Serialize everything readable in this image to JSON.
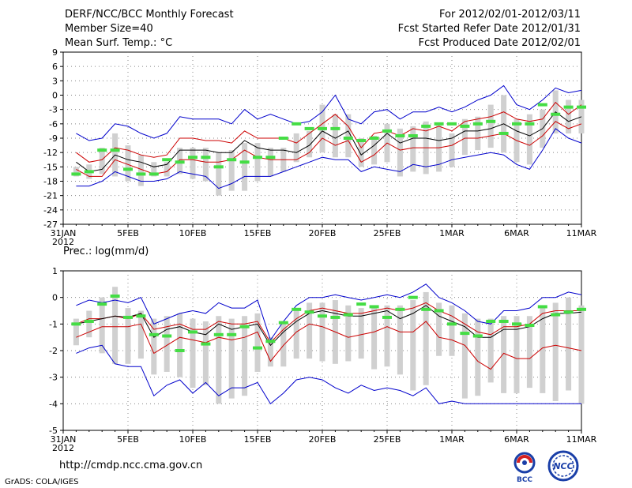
{
  "header": {
    "title": "DERF/NCC/BCC Monthly Forecast",
    "member_size": "Member Size=40",
    "temp_label": "Mean Surf. Temp.: °C",
    "period": "For 2012/02/01-2012/03/11",
    "started": "Fcst Started Refer Date 2012/01/31",
    "produced": "Fcst Produced Date 2012/02/01"
  },
  "footer": {
    "url": "http://cmdp.ncc.cma.gov.cn",
    "credit": "GrADS: COLA/IGES",
    "logo_bcc": "BCC",
    "logo_ncc": "NCC"
  },
  "colors": {
    "envelope": "#0000cc",
    "spread": "#cc0000",
    "mean": "#000000",
    "box": "#d0d0d0",
    "obs": "#44dd44",
    "grid": "#888888"
  },
  "chart_data": [
    {
      "type": "line",
      "title": "Mean Surf. Temp.: °C",
      "xlabel": "",
      "ylabel": "°C",
      "ylim": [
        -27,
        9
      ],
      "yticks": [
        "9",
        "6",
        "3",
        "0",
        "-3",
        "-6",
        "-9",
        "-12",
        "-15",
        "-18",
        "-21",
        "-24",
        "-27"
      ],
      "xticks": [
        {
          "day": 0,
          "label": "31JAN",
          "sub": "2012"
        },
        {
          "day": 5,
          "label": "5FEB"
        },
        {
          "day": 10,
          "label": "10FEB"
        },
        {
          "day": 15,
          "label": "15FEB"
        },
        {
          "day": 20,
          "label": "20FEB"
        },
        {
          "day": 25,
          "label": "25FEB"
        },
        {
          "day": 30,
          "label": "1MAR"
        },
        {
          "day": 35,
          "label": "6MAR"
        },
        {
          "day": 40,
          "label": "11MAR"
        }
      ],
      "x": [
        1,
        2,
        3,
        4,
        5,
        6,
        7,
        8,
        9,
        10,
        11,
        12,
        13,
        14,
        15,
        16,
        17,
        18,
        19,
        20,
        21,
        22,
        23,
        24,
        25,
        26,
        27,
        28,
        29,
        30,
        31,
        32,
        33,
        34,
        35,
        36,
        37,
        38,
        39,
        40
      ],
      "series": [
        {
          "name": "max",
          "values": [
            -8,
            -9.5,
            -9,
            -6,
            -6.5,
            -8,
            -9,
            -8,
            -4.5,
            -5,
            -5,
            -5,
            -6,
            -3,
            -5,
            -4,
            -5,
            -6,
            -5.5,
            -3.5,
            0,
            -5,
            -6,
            -3.5,
            -3,
            -5,
            -3.5,
            -3.5,
            -2.5,
            -3.5,
            -2.5,
            -1,
            0,
            2,
            -2,
            -3,
            -1,
            1.5,
            0.5,
            1
          ]
        },
        {
          "name": "upper",
          "values": [
            -12,
            -14,
            -13.5,
            -11,
            -11.5,
            -12.5,
            -13,
            -12.5,
            -9,
            -9,
            -9.5,
            -9.5,
            -10,
            -7.5,
            -9,
            -9,
            -9,
            -10,
            -8,
            -6,
            -4,
            -6.5,
            -11,
            -8,
            -7.5,
            -8.5,
            -7,
            -7.5,
            -6.5,
            -7.5,
            -5.5,
            -5,
            -4.5,
            -3.5,
            -5,
            -5.5,
            -5,
            -1.5,
            -4,
            -2
          ]
        },
        {
          "name": "mean",
          "values": [
            -14,
            -16,
            -15.5,
            -12.5,
            -13.5,
            -14,
            -15,
            -14.5,
            -11.5,
            -11.5,
            -11.5,
            -12,
            -12,
            -9.5,
            -11,
            -11.5,
            -11.5,
            -12,
            -10.5,
            -7.5,
            -9,
            -7.5,
            -12.5,
            -10.5,
            -8,
            -10,
            -9,
            -9,
            -9.5,
            -9,
            -7.5,
            -7.5,
            -7,
            -6,
            -7.5,
            -8.5,
            -7,
            -3.5,
            -5.5,
            -4.5
          ]
        },
        {
          "name": "lower",
          "values": [
            -15.5,
            -17,
            -17,
            -13.5,
            -14.5,
            -15.5,
            -16.5,
            -16,
            -13.5,
            -13.5,
            -14,
            -14,
            -13.5,
            -11.5,
            -13,
            -13.5,
            -13.5,
            -13.5,
            -12,
            -9,
            -10.5,
            -9.5,
            -14,
            -12.5,
            -10,
            -11.5,
            -11,
            -11,
            -11,
            -10.5,
            -9,
            -9,
            -8.5,
            -8,
            -9.5,
            -10.5,
            -8.5,
            -5.5,
            -7,
            -6
          ]
        },
        {
          "name": "min",
          "values": [
            -19,
            -19,
            -18,
            -16,
            -17,
            -18,
            -18,
            -17.5,
            -16,
            -16.5,
            -17,
            -19.5,
            -18.5,
            -17,
            -17,
            -17,
            -16,
            -15,
            -14,
            -13,
            -13.5,
            -13.5,
            -16,
            -15,
            -15.5,
            -16,
            -14.5,
            -15,
            -14.5,
            -13.5,
            -13,
            -12.5,
            -12,
            -12.5,
            -14.5,
            -15.5,
            -11.5,
            -7,
            -9,
            -10
          ]
        },
        {
          "name": "box_top",
          "values": [
            -15,
            -14.5,
            -11,
            -8,
            -10.5,
            -12.5,
            -14,
            -14,
            -11,
            -11,
            -11,
            -12,
            -11.5,
            -10,
            -10,
            -11,
            -11,
            -8,
            -7.5,
            -2,
            -4,
            -4,
            -9,
            -8.5,
            -6,
            -7,
            -6.5,
            -5.5,
            -6,
            -8,
            -5,
            -4.5,
            -2,
            0,
            -5,
            -4,
            -3,
            1,
            -1,
            -1
          ]
        },
        {
          "name": "box_bottom",
          "values": [
            -17,
            -17.5,
            -16.5,
            -17,
            -18,
            -19,
            -17,
            -17,
            -16.5,
            -17.5,
            -18,
            -21,
            -20,
            -20,
            -18,
            -17,
            -16,
            -14,
            -13,
            -12,
            -13,
            -13,
            -15,
            -14.5,
            -14,
            -17,
            -16,
            -16.5,
            -16,
            -15,
            -12.5,
            -11.5,
            -11,
            -12,
            -14,
            -14.5,
            -11,
            -8,
            -8,
            -8
          ]
        },
        {
          "name": "observed",
          "values": [
            -16.5,
            -16,
            -11.5,
            -11.5,
            -15.5,
            -16.5,
            -16.5,
            -13.5,
            -14,
            -13,
            -13,
            -15,
            -13.5,
            -14,
            -13,
            -13,
            -9,
            -6,
            -7,
            -7,
            -7,
            -9,
            -9.5,
            -9,
            -7.5,
            -8.5,
            -8.5,
            -6.5,
            -6,
            -6,
            -6.5,
            -6,
            -5.5,
            -8,
            -6,
            -6,
            -2,
            -4,
            -2.5,
            -2.5
          ]
        }
      ]
    },
    {
      "type": "line",
      "title": "Prec.: log(mm/d)",
      "xlabel": "",
      "ylabel": "log(mm/d)",
      "ylim": [
        -5,
        1
      ],
      "yticks": [
        "1",
        "0",
        "-1",
        "-2",
        "-3",
        "-4",
        "-5"
      ],
      "xticks": [
        {
          "day": 0,
          "label": "31JAN",
          "sub": "2012"
        },
        {
          "day": 5,
          "label": "5FEB"
        },
        {
          "day": 10,
          "label": "10FEB"
        },
        {
          "day": 15,
          "label": "15FEB"
        },
        {
          "day": 20,
          "label": "20FEB"
        },
        {
          "day": 25,
          "label": "25FEB"
        },
        {
          "day": 30,
          "label": "1MAR"
        },
        {
          "day": 35,
          "label": "6MAR"
        },
        {
          "day": 40,
          "label": "11MAR"
        }
      ],
      "x": [
        1,
        2,
        3,
        4,
        5,
        6,
        7,
        8,
        9,
        10,
        11,
        12,
        13,
        14,
        15,
        16,
        17,
        18,
        19,
        20,
        21,
        22,
        23,
        24,
        25,
        26,
        27,
        28,
        29,
        30,
        31,
        32,
        33,
        34,
        35,
        36,
        37,
        38,
        39,
        40
      ],
      "series": [
        {
          "name": "max",
          "values": [
            -0.3,
            -0.1,
            -0.2,
            -0.1,
            -0.2,
            0,
            -1,
            -0.8,
            -0.6,
            -0.5,
            -0.6,
            -0.2,
            -0.4,
            -0.4,
            -0.1,
            -1.6,
            -0.9,
            -0.3,
            0,
            0,
            0.1,
            0,
            -0.1,
            0,
            0.1,
            0,
            0.2,
            0.5,
            0,
            -0.2,
            -0.5,
            -0.9,
            -1,
            -0.5,
            -0.5,
            -0.4,
            0,
            0,
            0.2,
            0.1
          ]
        },
        {
          "name": "upper",
          "values": [
            -1,
            -0.8,
            -0.8,
            -0.7,
            -0.8,
            -0.6,
            -1.2,
            -1.1,
            -1,
            -1.2,
            -1.2,
            -0.9,
            -1,
            -1,
            -0.9,
            -1.7,
            -1.2,
            -0.8,
            -0.5,
            -0.4,
            -0.5,
            -0.6,
            -0.6,
            -0.5,
            -0.4,
            -0.5,
            -0.4,
            -0.2,
            -0.5,
            -0.7,
            -1,
            -1.3,
            -1.4,
            -1.1,
            -1.1,
            -1,
            -0.6,
            -0.5,
            -0.5,
            -0.5
          ]
        },
        {
          "name": "mean",
          "values": [
            -1,
            -0.9,
            -0.8,
            -0.7,
            -0.75,
            -0.6,
            -1.5,
            -1.2,
            -1.1,
            -1.3,
            -1.4,
            -1,
            -1.2,
            -1.1,
            -1,
            -1.8,
            -1.3,
            -0.9,
            -0.6,
            -0.5,
            -0.6,
            -0.7,
            -0.7,
            -0.6,
            -0.5,
            -0.8,
            -0.6,
            -0.3,
            -0.7,
            -0.9,
            -1.1,
            -1.5,
            -1.5,
            -1.2,
            -1.2,
            -1.1,
            -0.8,
            -0.6,
            -0.6,
            -0.55
          ]
        },
        {
          "name": "lower",
          "values": [
            -1.5,
            -1.3,
            -1.1,
            -1.1,
            -1.1,
            -1,
            -2.1,
            -1.8,
            -1.5,
            -1.6,
            -1.7,
            -1.5,
            -1.6,
            -1.5,
            -1.3,
            -2.4,
            -1.8,
            -1.3,
            -1,
            -1.1,
            -1.3,
            -1.5,
            -1.4,
            -1.3,
            -1.1,
            -1.3,
            -1.3,
            -0.9,
            -1.5,
            -1.6,
            -1.8,
            -2.4,
            -2.7,
            -2.1,
            -2.3,
            -2.3,
            -1.9,
            -1.8,
            -1.9,
            -2
          ]
        },
        {
          "name": "min",
          "values": [
            -2.1,
            -1.9,
            -1.8,
            -2.5,
            -2.6,
            -2.6,
            -3.7,
            -3.3,
            -3.1,
            -3.6,
            -3.2,
            -3.7,
            -3.4,
            -3.4,
            -3.2,
            -4,
            -3.6,
            -3.1,
            -3,
            -3.1,
            -3.4,
            -3.6,
            -3.3,
            -3.5,
            -3.4,
            -3.5,
            -3.7,
            -3.4,
            -4,
            -3.9,
            -4,
            -4,
            -4,
            -4,
            -4,
            -4,
            -4,
            -4,
            -4,
            -4
          ]
        },
        {
          "name": "box_top",
          "values": [
            -0.8,
            -0.5,
            0,
            0.4,
            -0.4,
            -0.5,
            -0.8,
            -0.7,
            -0.6,
            -0.8,
            -0.9,
            -0.7,
            -0.8,
            -0.7,
            -0.6,
            -1.5,
            -0.9,
            -0.5,
            -0.2,
            -0.2,
            -0.1,
            -0.3,
            -0.4,
            -0.3,
            -0.3,
            -0.3,
            -0.1,
            0.2,
            -0.2,
            -0.3,
            -0.6,
            -0.8,
            -0.8,
            -0.7,
            -0.7,
            -0.7,
            -0.4,
            -0.2,
            0,
            -0.3
          ]
        },
        {
          "name": "box_bottom",
          "values": [
            -1.8,
            -1.5,
            -2.1,
            -2.5,
            -2.5,
            -2.3,
            -2.9,
            -2.8,
            -3,
            -3.4,
            -3.3,
            -4,
            -3.8,
            -3.7,
            -2.8,
            -2.6,
            -2.6,
            -2.3,
            -2.3,
            -2.4,
            -2.5,
            -2.4,
            -2.3,
            -2.7,
            -2.6,
            -2.9,
            -3.5,
            -3.3,
            -2.2,
            -2.2,
            -3.8,
            -3.7,
            -3.2,
            -3.6,
            -3.6,
            -3.4,
            -3.6,
            -3.9,
            -3.5,
            -4
          ]
        },
        {
          "name": "observed",
          "values": [
            -1,
            -0.9,
            -0.25,
            0.05,
            -0.75,
            -0.7,
            -1.4,
            -1.45,
            -2,
            -1.3,
            -1.75,
            -1.4,
            -1.4,
            -1.1,
            -1.9,
            -1.65,
            -0.95,
            -0.45,
            -0.55,
            -0.7,
            -0.75,
            -0.65,
            -0.25,
            -0.35,
            -0.75,
            -0.45,
            0,
            -0.45,
            -0.5,
            -1,
            -1.35,
            -1.45,
            -0.9,
            -0.9,
            -1,
            -1.05,
            -0.35,
            -0.65,
            -0.55,
            -0.45
          ]
        }
      ]
    }
  ]
}
